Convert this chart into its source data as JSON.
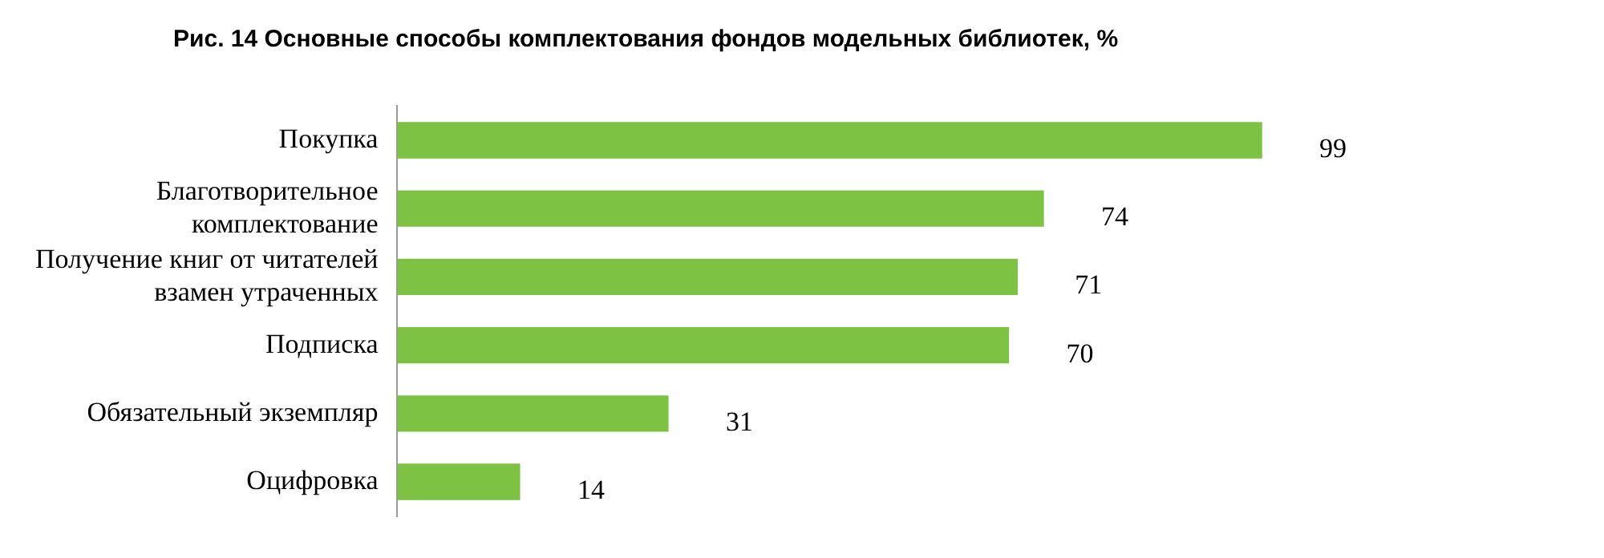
{
  "chart_data": {
    "type": "bar",
    "orientation": "horizontal",
    "title": "Рис. 14 Основные способы комплектования фондов модельных библиотек, %",
    "categories": [
      "Покупка",
      "Благотворительное комплектование",
      "Получение книг от читателей взамен утраченных",
      "Подписка",
      "Обязательный экземпляр",
      "Оцифровка"
    ],
    "values": [
      99,
      74,
      71,
      70,
      31,
      14
    ],
    "color": "#7dc242",
    "data_labels": true
  }
}
